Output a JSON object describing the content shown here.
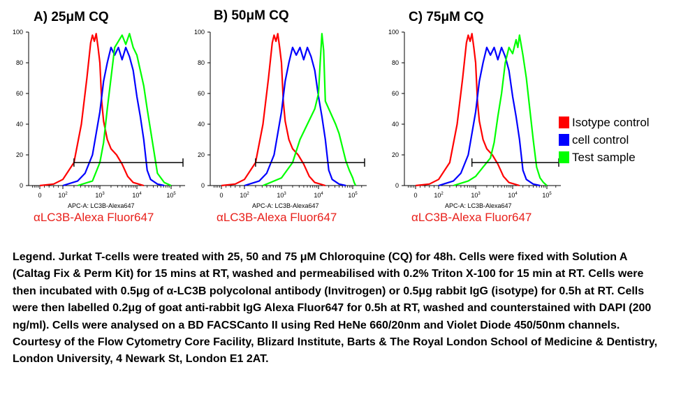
{
  "panels": [
    {
      "title": "A)  25μM CQ",
      "antibody_label": "αLC3B-Alexa Fluor647"
    },
    {
      "title": "B) 50μM CQ",
      "antibody_label": "αLC3B-Alexa Fluor647"
    },
    {
      "title": "C) 75μM CQ",
      "antibody_label": "αLC3B-Alexa Fluor647"
    }
  ],
  "axis_label": "APC-A: LC3B-Alexa647",
  "legend": [
    {
      "label": "Isotype control",
      "color": "#ff0000"
    },
    {
      "label": "cell control",
      "color": "#0000ff"
    },
    {
      "label": "Test sample",
      "color": "#00ff00"
    }
  ],
  "caption": "Legend. Jurkat T-cells were treated with 25, 50 and 75 μM Chloroquine (CQ) for 48h. Cells were fixed with Solution A (Caltag Fix & Perm Kit) for 15 mins at RT, washed and permeabilised with 0.2% Triton X-100 for 15 min at RT. Cells were then incubated with 0.5μg of α-LC3B polycolonal antibody (Invitrogen) or 0.5μg rabbit IgG (isotype) for 0.5h at RT. Cells were then labelled 0.2μg of goat anti-rabbit IgG Alexa Fluor647 for 0.5h at RT, washed and counterstained with DAPI (200 ng/ml). Cells were analysed on a BD FACSCanto II using Red HeNe 660/20nm and Violet Diode 450/50nm channels. Courtesy of the Flow Cytometry Core Facility, Blizard Institute, Barts & The Royal London School of Medicine & Dentistry, London University, 4 Newark St, London E1 2AT.",
  "chart_data": [
    {
      "type": "line",
      "title": "A)  25μM CQ",
      "xlabel": "APC-A: LC3B-Alexa647",
      "ylabel": "",
      "x_scale": "biexponential",
      "x_ticks": [
        "0",
        "10^2",
        "10^3",
        "10^4",
        "10^5"
      ],
      "y_ticks": [
        0,
        20,
        40,
        60,
        80,
        100
      ],
      "ylim": [
        0,
        100
      ],
      "gate": {
        "x": [
          2.3,
          5.4
        ],
        "y": 15
      },
      "series": [
        {
          "name": "Isotype control",
          "color": "#ff0000",
          "x": [
            1.0,
            1.6,
            2.0,
            2.3,
            2.5,
            2.65,
            2.75,
            2.8,
            2.85,
            2.9,
            2.95,
            3.0,
            3.05,
            3.1,
            3.2,
            3.3,
            3.45,
            3.6,
            3.75,
            3.9,
            4.05,
            4.2
          ],
          "y": [
            0,
            1,
            4,
            15,
            40,
            70,
            93,
            98,
            94,
            99,
            90,
            80,
            55,
            42,
            30,
            24,
            20,
            14,
            6,
            2,
            1,
            0
          ]
        },
        {
          "name": "cell control",
          "color": "#0000ff",
          "x": [
            2.0,
            2.4,
            2.6,
            2.8,
            3.0,
            3.1,
            3.2,
            3.3,
            3.4,
            3.5,
            3.6,
            3.7,
            3.8,
            3.9,
            4.0,
            4.1,
            4.2,
            4.3,
            4.4,
            4.6,
            4.8
          ],
          "y": [
            0,
            3,
            8,
            20,
            48,
            68,
            80,
            90,
            85,
            90,
            82,
            90,
            84,
            75,
            58,
            45,
            30,
            10,
            4,
            1,
            0
          ]
        },
        {
          "name": "Test sample",
          "color": "#00ff00",
          "x": [
            2.4,
            2.8,
            3.0,
            3.1,
            3.2,
            3.3,
            3.4,
            3.5,
            3.6,
            3.7,
            3.8,
            3.9,
            4.0,
            4.1,
            4.2,
            4.3,
            4.4,
            4.5,
            4.6,
            4.8,
            5.0
          ],
          "y": [
            0,
            3,
            15,
            28,
            50,
            70,
            90,
            94,
            98,
            92,
            99,
            90,
            85,
            75,
            65,
            50,
            36,
            22,
            8,
            2,
            0
          ]
        }
      ]
    },
    {
      "type": "line",
      "title": "B) 50μM CQ",
      "xlabel": "APC-A: LC3B-Alexa647",
      "ylabel": "",
      "x_scale": "biexponential",
      "x_ticks": [
        "0",
        "10^2",
        "10^3",
        "10^4",
        "10^5"
      ],
      "y_ticks": [
        0,
        20,
        40,
        60,
        80,
        100
      ],
      "ylim": [
        0,
        100
      ],
      "gate": {
        "x": [
          2.3,
          5.4
        ],
        "y": 15
      },
      "series": [
        {
          "name": "Isotype control",
          "color": "#ff0000",
          "x": [
            1.0,
            1.6,
            2.0,
            2.3,
            2.5,
            2.65,
            2.75,
            2.8,
            2.85,
            2.9,
            2.95,
            3.0,
            3.05,
            3.1,
            3.2,
            3.3,
            3.45,
            3.6,
            3.75,
            3.9,
            4.05,
            4.2
          ],
          "y": [
            0,
            1,
            4,
            15,
            40,
            70,
            93,
            98,
            94,
            99,
            90,
            80,
            55,
            42,
            30,
            24,
            20,
            14,
            6,
            2,
            1,
            0
          ]
        },
        {
          "name": "cell control",
          "color": "#0000ff",
          "x": [
            2.0,
            2.4,
            2.6,
            2.8,
            3.0,
            3.1,
            3.2,
            3.3,
            3.4,
            3.5,
            3.6,
            3.7,
            3.8,
            3.9,
            4.0,
            4.1,
            4.2,
            4.3,
            4.4,
            4.6,
            4.8
          ],
          "y": [
            0,
            3,
            8,
            20,
            48,
            68,
            80,
            90,
            85,
            90,
            82,
            90,
            84,
            75,
            58,
            45,
            30,
            10,
            4,
            1,
            0
          ]
        },
        {
          "name": "Test sample",
          "color": "#00ff00",
          "x": [
            2.5,
            3.0,
            3.3,
            3.5,
            3.7,
            3.8,
            3.9,
            4.0,
            4.05,
            4.1,
            4.15,
            4.2,
            4.3,
            4.4,
            4.5,
            4.6,
            4.7,
            4.8,
            4.9,
            5.0,
            5.05,
            5.1
          ],
          "y": [
            0,
            5,
            15,
            30,
            40,
            45,
            50,
            60,
            80,
            99,
            88,
            55,
            50,
            45,
            40,
            34,
            25,
            16,
            10,
            5,
            2,
            0
          ]
        }
      ]
    },
    {
      "type": "line",
      "title": "C) 75μM CQ",
      "xlabel": "APC-A: LC3B-Alexa647",
      "ylabel": "",
      "x_scale": "biexponential",
      "x_ticks": [
        "0",
        "10^2",
        "10^3",
        "10^4",
        "10^5"
      ],
      "y_ticks": [
        0,
        20,
        40,
        60,
        80,
        100
      ],
      "ylim": [
        0,
        100
      ],
      "gate": {
        "x": [
          2.9,
          5.4
        ],
        "y": 15
      },
      "series": [
        {
          "name": "Isotype control",
          "color": "#ff0000",
          "x": [
            1.0,
            1.6,
            2.0,
            2.3,
            2.5,
            2.65,
            2.75,
            2.8,
            2.85,
            2.9,
            2.95,
            3.0,
            3.05,
            3.1,
            3.2,
            3.3,
            3.45,
            3.6,
            3.75,
            3.9,
            4.05,
            4.2
          ],
          "y": [
            0,
            1,
            4,
            15,
            40,
            70,
            93,
            98,
            94,
            99,
            90,
            80,
            55,
            42,
            30,
            24,
            20,
            14,
            6,
            2,
            1,
            0
          ]
        },
        {
          "name": "cell control",
          "color": "#0000ff",
          "x": [
            2.0,
            2.4,
            2.6,
            2.8,
            3.0,
            3.1,
            3.2,
            3.3,
            3.4,
            3.5,
            3.6,
            3.7,
            3.8,
            3.9,
            4.0,
            4.1,
            4.2,
            4.3,
            4.4,
            4.6,
            4.8
          ],
          "y": [
            0,
            3,
            8,
            20,
            48,
            68,
            80,
            90,
            85,
            90,
            82,
            90,
            84,
            75,
            58,
            45,
            30,
            10,
            4,
            1,
            0
          ]
        },
        {
          "name": "Test sample",
          "color": "#00ff00",
          "x": [
            2.4,
            2.8,
            3.0,
            3.2,
            3.4,
            3.5,
            3.6,
            3.7,
            3.8,
            3.9,
            4.0,
            4.1,
            4.15,
            4.2,
            4.3,
            4.4,
            4.5,
            4.6,
            4.7,
            4.8,
            4.9,
            5.0
          ],
          "y": [
            0,
            3,
            6,
            12,
            18,
            28,
            45,
            60,
            80,
            90,
            86,
            95,
            90,
            98,
            85,
            70,
            50,
            30,
            12,
            5,
            2,
            0
          ]
        }
      ]
    }
  ]
}
